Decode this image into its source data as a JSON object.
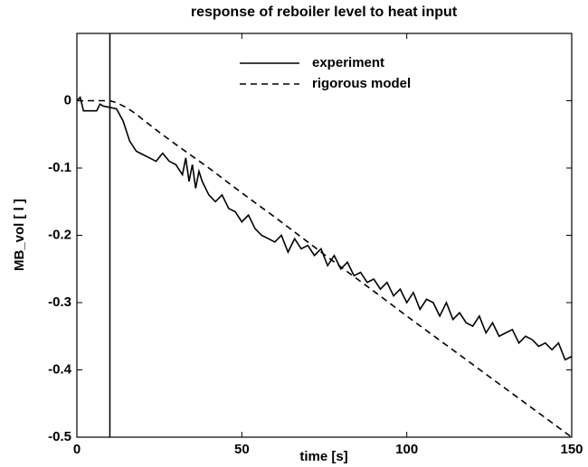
{
  "chart_data": {
    "type": "line",
    "title": "response of reboiler level to heat input",
    "xlabel": "time [s]",
    "ylabel": "MB_vol [ l ]",
    "xlim": [
      0,
      150
    ],
    "xticks": [
      0,
      50,
      100,
      150
    ],
    "ylim": [
      -0.5,
      0.1
    ],
    "yticks": [
      -0.5,
      -0.4,
      -0.3,
      -0.2,
      -0.1,
      0
    ],
    "vlines": [
      10
    ],
    "legend": "upper center",
    "series": [
      {
        "name": "experiment",
        "color": "#000000",
        "dash": "solid",
        "x": [
          0,
          1,
          2,
          4,
          6,
          7,
          8,
          10,
          12,
          14,
          16,
          18,
          20,
          22,
          24,
          26,
          28,
          30,
          32,
          33,
          34,
          35,
          36,
          37,
          38,
          40,
          42,
          44,
          46,
          48,
          50,
          52,
          54,
          56,
          58,
          60,
          62,
          64,
          66,
          68,
          70,
          72,
          74,
          76,
          78,
          80,
          82,
          84,
          86,
          88,
          90,
          92,
          94,
          96,
          98,
          100,
          102,
          104,
          106,
          108,
          110,
          112,
          114,
          116,
          118,
          120,
          122,
          124,
          126,
          128,
          130,
          132,
          134,
          136,
          138,
          140,
          142,
          144,
          146,
          148,
          150
        ],
        "values": [
          0,
          0.005,
          -0.015,
          -0.015,
          -0.015,
          -0.005,
          -0.008,
          -0.01,
          -0.012,
          -0.03,
          -0.06,
          -0.075,
          -0.08,
          -0.085,
          -0.09,
          -0.078,
          -0.09,
          -0.095,
          -0.11,
          -0.085,
          -0.12,
          -0.095,
          -0.13,
          -0.105,
          -0.12,
          -0.14,
          -0.15,
          -0.14,
          -0.16,
          -0.165,
          -0.18,
          -0.17,
          -0.19,
          -0.2,
          -0.205,
          -0.21,
          -0.2,
          -0.225,
          -0.205,
          -0.22,
          -0.215,
          -0.23,
          -0.22,
          -0.245,
          -0.23,
          -0.25,
          -0.24,
          -0.26,
          -0.255,
          -0.27,
          -0.265,
          -0.28,
          -0.27,
          -0.29,
          -0.28,
          -0.3,
          -0.285,
          -0.31,
          -0.295,
          -0.3,
          -0.32,
          -0.3,
          -0.325,
          -0.315,
          -0.33,
          -0.335,
          -0.32,
          -0.345,
          -0.33,
          -0.35,
          -0.345,
          -0.34,
          -0.36,
          -0.35,
          -0.355,
          -0.365,
          -0.36,
          -0.37,
          -0.36,
          -0.385,
          -0.38
        ]
      },
      {
        "name": "rigorous model",
        "color": "#000000",
        "dash": "dashed",
        "x": [
          0,
          5,
          10,
          12,
          15,
          18,
          20,
          25,
          30,
          40,
          50,
          60,
          70,
          80,
          90,
          100,
          110,
          120,
          130,
          140,
          150
        ],
        "values": [
          0,
          0,
          0,
          -0.003,
          -0.01,
          -0.02,
          -0.028,
          -0.047,
          -0.065,
          -0.1,
          -0.137,
          -0.173,
          -0.21,
          -0.247,
          -0.283,
          -0.32,
          -0.356,
          -0.392,
          -0.428,
          -0.464,
          -0.5
        ]
      }
    ]
  }
}
